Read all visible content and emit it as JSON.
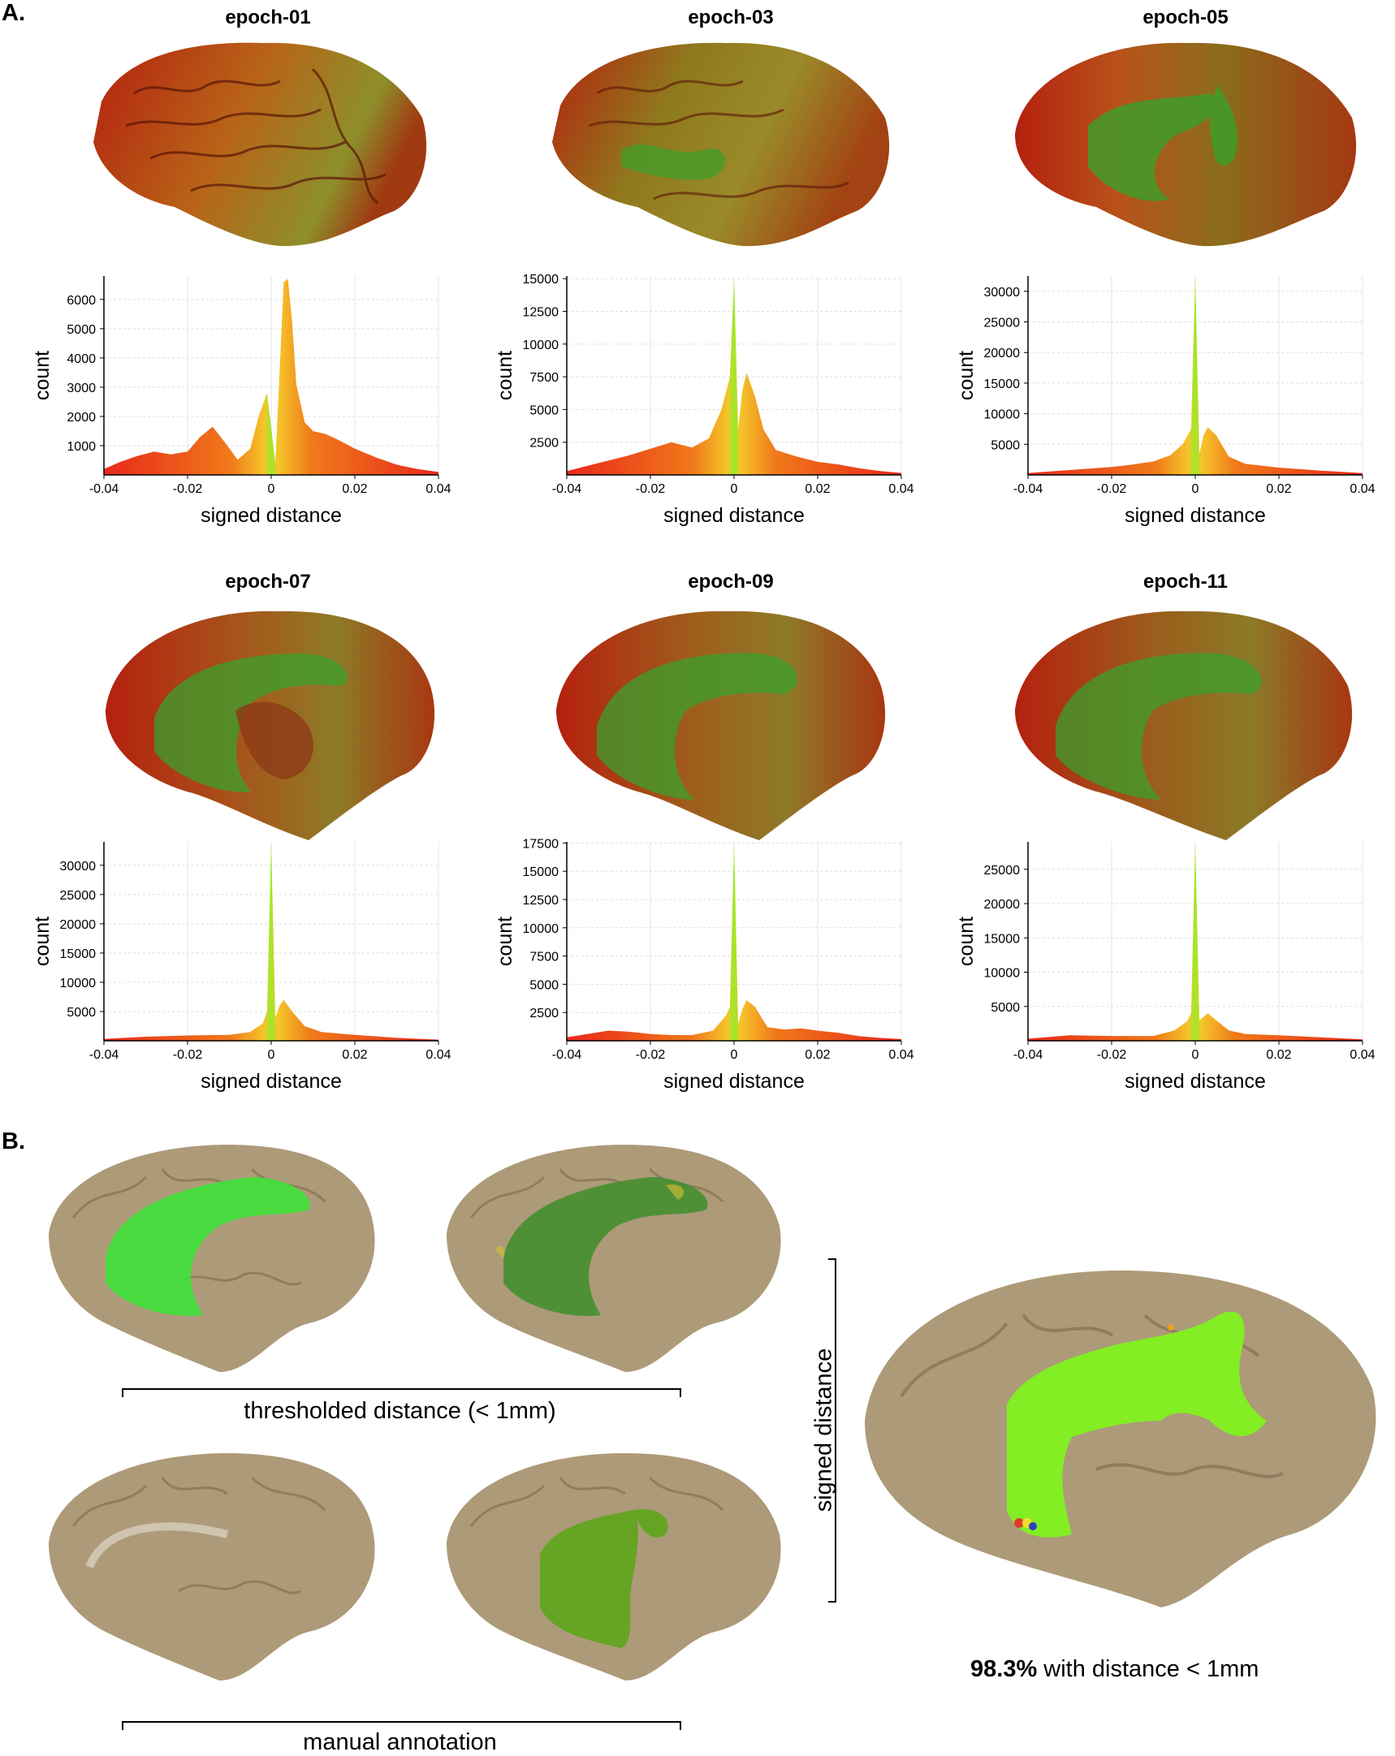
{
  "panel_a_label": "A.",
  "panel_b_label": "B.",
  "chart_data": [
    {
      "type": "area",
      "title": "epoch-01",
      "xlabel": "signed distance",
      "ylabel": "count",
      "xlim": [
        -0.04,
        0.04
      ],
      "ylim": [
        0,
        6800
      ],
      "xticks": [
        "-0.04",
        "-0.02",
        "0",
        "0.02",
        "0.04"
      ],
      "yticks": [
        1000,
        2000,
        3000,
        4000,
        5000,
        6000
      ],
      "x": [
        -0.04,
        -0.036,
        -0.032,
        -0.028,
        -0.024,
        -0.02,
        -0.017,
        -0.014,
        -0.011,
        -0.008,
        -0.005,
        -0.003,
        -0.001,
        0.001,
        0.002,
        0.003,
        0.004,
        0.005,
        0.006,
        0.008,
        0.01,
        0.013,
        0.016,
        0.02,
        0.025,
        0.03,
        0.035,
        0.04
      ],
      "y": [
        200,
        450,
        650,
        800,
        700,
        800,
        1300,
        1650,
        1100,
        520,
        900,
        2000,
        2800,
        420,
        3500,
        6600,
        6700,
        5200,
        3100,
        1800,
        1500,
        1400,
        1200,
        900,
        600,
        350,
        200,
        100
      ]
    },
    {
      "type": "area",
      "title": "epoch-03",
      "xlabel": "signed distance",
      "ylabel": "count",
      "xlim": [
        -0.04,
        0.04
      ],
      "ylim": [
        0,
        15200
      ],
      "xticks": [
        "-0.04",
        "-0.02",
        "0",
        "0.02",
        "0.04"
      ],
      "yticks": [
        2500,
        5000,
        7500,
        10000,
        12500,
        15000
      ],
      "x": [
        -0.04,
        -0.035,
        -0.03,
        -0.025,
        -0.02,
        -0.015,
        -0.01,
        -0.006,
        -0.003,
        -0.001,
        0,
        0.001,
        0.002,
        0.003,
        0.005,
        0.007,
        0.01,
        0.015,
        0.02,
        0.025,
        0.03,
        0.035,
        0.04
      ],
      "y": [
        300,
        700,
        1100,
        1500,
        2000,
        2500,
        2100,
        2800,
        5000,
        7500,
        15000,
        3500,
        6500,
        7800,
        6000,
        3500,
        1900,
        1400,
        1000,
        800,
        500,
        300,
        150
      ]
    },
    {
      "type": "area",
      "title": "epoch-05",
      "xlabel": "signed distance",
      "ylabel": "count",
      "xlim": [
        -0.04,
        0.04
      ],
      "ylim": [
        0,
        32500
      ],
      "xticks": [
        "-0.04",
        "-0.02",
        "0",
        "0.02",
        "0.04"
      ],
      "yticks": [
        5000,
        10000,
        15000,
        20000,
        25000,
        30000
      ],
      "x": [
        -0.04,
        -0.03,
        -0.02,
        -0.015,
        -0.01,
        -0.006,
        -0.003,
        -0.001,
        0,
        0.001,
        0.002,
        0.003,
        0.005,
        0.008,
        0.012,
        0.02,
        0.03,
        0.04
      ],
      "y": [
        300,
        800,
        1300,
        1700,
        2200,
        3200,
        5000,
        7500,
        32500,
        3500,
        6500,
        7800,
        6500,
        3000,
        1800,
        1200,
        700,
        300
      ]
    },
    {
      "type": "area",
      "title": "epoch-07",
      "xlabel": "signed distance",
      "ylabel": "count",
      "xlim": [
        -0.04,
        0.04
      ],
      "ylim": [
        0,
        34000
      ],
      "xticks": [
        "-0.04",
        "-0.02",
        "0",
        "0.02",
        "0.04"
      ],
      "yticks": [
        5000,
        10000,
        15000,
        20000,
        25000,
        30000
      ],
      "x": [
        -0.04,
        -0.03,
        -0.02,
        -0.01,
        -0.005,
        -0.002,
        -0.001,
        0,
        0.001,
        0.002,
        0.003,
        0.005,
        0.008,
        0.012,
        0.02,
        0.03,
        0.04
      ],
      "y": [
        300,
        700,
        900,
        1000,
        1500,
        3000,
        5000,
        34000,
        4000,
        6000,
        7000,
        5000,
        2500,
        1500,
        1000,
        500,
        200
      ]
    },
    {
      "type": "area",
      "title": "epoch-09",
      "xlabel": "signed distance",
      "ylabel": "count",
      "xlim": [
        -0.04,
        0.04
      ],
      "ylim": [
        0,
        17600
      ],
      "xticks": [
        "-0.04",
        "-0.02",
        "0",
        "0.02",
        "0.04"
      ],
      "yticks": [
        2500,
        5000,
        7500,
        10000,
        12500,
        15000,
        17500
      ],
      "x": [
        -0.04,
        -0.035,
        -0.03,
        -0.025,
        -0.02,
        -0.015,
        -0.01,
        -0.005,
        -0.002,
        -0.001,
        0,
        0.001,
        0.002,
        0.003,
        0.005,
        0.008,
        0.012,
        0.016,
        0.02,
        0.025,
        0.03,
        0.035,
        0.04
      ],
      "y": [
        300,
        600,
        900,
        800,
        600,
        500,
        500,
        900,
        2200,
        3000,
        17500,
        1500,
        2800,
        3600,
        3000,
        1200,
        1000,
        1100,
        900,
        700,
        400,
        250,
        150
      ]
    },
    {
      "type": "area",
      "title": "epoch-11",
      "xlabel": "signed distance",
      "ylabel": "count",
      "xlim": [
        -0.04,
        0.04
      ],
      "ylim": [
        0,
        29000
      ],
      "xticks": [
        "-0.04",
        "-0.02",
        "0",
        "0.02",
        "0.04"
      ],
      "yticks": [
        5000,
        10000,
        15000,
        20000,
        25000
      ],
      "x": [
        -0.04,
        -0.03,
        -0.02,
        -0.01,
        -0.005,
        -0.002,
        -0.001,
        0,
        0.001,
        0.002,
        0.003,
        0.005,
        0.008,
        0.012,
        0.02,
        0.03,
        0.04
      ],
      "y": [
        300,
        800,
        700,
        700,
        1500,
        2800,
        4000,
        29000,
        3000,
        3500,
        4000,
        3000,
        1500,
        1000,
        800,
        500,
        200
      ]
    }
  ],
  "captions": {
    "thresholded": "thresholded distance (< 1mm)",
    "manual": "manual annotation",
    "signed_distance": "signed distance",
    "stat_bold": "98.3%",
    "stat_rest": " with distance < 1mm"
  }
}
